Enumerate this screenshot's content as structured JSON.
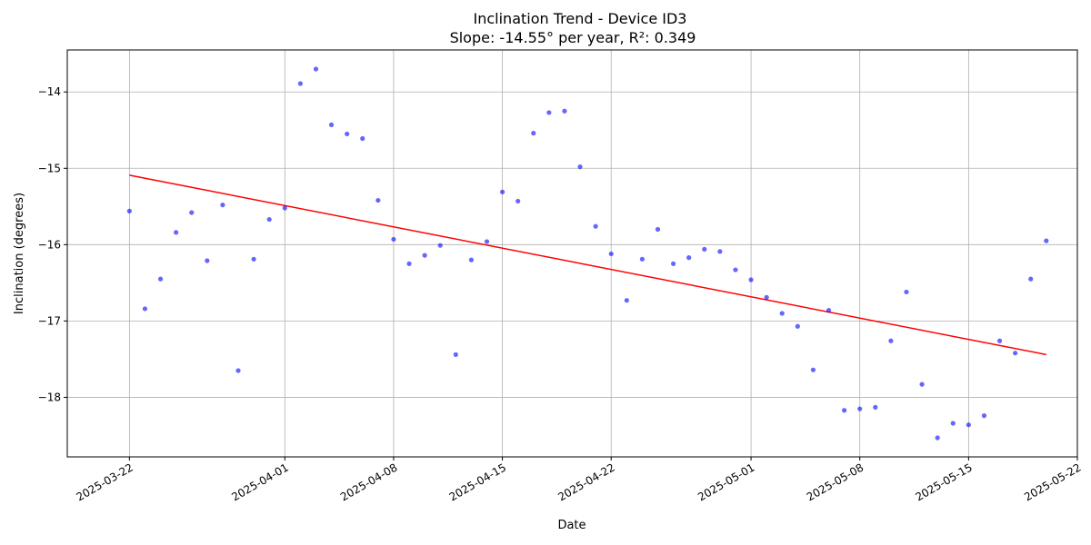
{
  "chart_data": {
    "type": "scatter",
    "title": "Inclination Trend - Device ID3",
    "subtitle": "Slope: -14.55° per year, R²: 0.349",
    "xlabel": "Date",
    "ylabel": "Inclination (degrees)",
    "grid": true,
    "xlim": [
      "2025-03-18",
      "2025-05-22"
    ],
    "ylim": [
      -18.78,
      -13.45
    ],
    "x_ticks": [
      "2025-03-22",
      "2025-04-01",
      "2025-04-08",
      "2025-04-15",
      "2025-04-22",
      "2025-05-01",
      "2025-05-08",
      "2025-05-15",
      "2025-05-22"
    ],
    "y_ticks": [
      -18,
      -17,
      -16,
      -15,
      -14
    ],
    "y_tick_labels": [
      "−18",
      "−17",
      "−16",
      "−15",
      "−14"
    ],
    "colors": {
      "points": "#0000ff",
      "trend": "#ff0000",
      "grid": "#b0b0b0"
    },
    "series": [
      {
        "x": [
          "2025-03-22",
          "2025-03-23",
          "2025-03-24",
          "2025-03-25",
          "2025-03-26",
          "2025-03-27",
          "2025-03-28",
          "2025-03-29",
          "2025-03-30",
          "2025-03-31",
          "2025-04-01",
          "2025-04-02",
          "2025-04-03",
          "2025-04-04",
          "2025-04-05",
          "2025-04-06",
          "2025-04-07",
          "2025-04-08",
          "2025-04-09",
          "2025-04-10",
          "2025-04-11",
          "2025-04-12",
          "2025-04-13",
          "2025-04-14",
          "2025-04-15",
          "2025-04-16",
          "2025-04-17",
          "2025-04-18",
          "2025-04-19",
          "2025-04-20",
          "2025-04-21",
          "2025-04-22",
          "2025-04-23",
          "2025-04-24",
          "2025-04-25",
          "2025-04-26",
          "2025-04-27",
          "2025-04-28",
          "2025-04-29",
          "2025-04-30",
          "2025-05-01",
          "2025-05-02",
          "2025-05-03",
          "2025-05-04",
          "2025-05-05",
          "2025-05-06",
          "2025-05-07",
          "2025-05-08",
          "2025-05-09",
          "2025-05-10",
          "2025-05-11",
          "2025-05-12",
          "2025-05-13",
          "2025-05-14",
          "2025-05-15",
          "2025-05-16",
          "2025-05-17",
          "2025-05-18",
          "2025-05-19",
          "2025-05-20"
        ],
        "values": [
          -15.56,
          -16.84,
          -16.45,
          -15.84,
          -15.58,
          -16.21,
          -15.48,
          -17.65,
          -16.19,
          -15.67,
          -15.52,
          -13.89,
          -13.7,
          -14.43,
          -14.55,
          -14.61,
          -15.42,
          -15.93,
          -16.25,
          -16.14,
          -16.01,
          -17.44,
          -16.2,
          -15.96,
          -15.31,
          -15.43,
          -14.54,
          -14.27,
          -14.25,
          -14.98,
          -15.76,
          -16.12,
          -16.73,
          -16.19,
          -15.8,
          -16.25,
          -16.17,
          -16.06,
          -16.09,
          -16.33,
          -16.46,
          -16.69,
          -16.9,
          -17.07,
          -17.64,
          -16.86,
          -18.17,
          -18.15,
          -18.13,
          -17.26,
          -16.62,
          -17.83,
          -18.53,
          -18.34,
          -18.36,
          -18.24,
          -17.26,
          -17.42,
          -16.45,
          -15.95
        ]
      }
    ],
    "trend_line": {
      "x": [
        "2025-03-22",
        "2025-05-20"
      ],
      "values": [
        -15.09,
        -17.44
      ]
    }
  }
}
